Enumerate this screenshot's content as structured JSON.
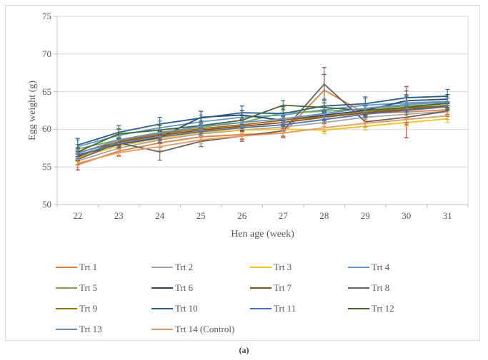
{
  "figure": {
    "caption": "(a)"
  },
  "chart_data": {
    "type": "line",
    "title": "",
    "xlabel": "Hen age (week)",
    "ylabel": "Egg weight (g)",
    "x": [
      22,
      23,
      24,
      25,
      26,
      27,
      28,
      29,
      30,
      31
    ],
    "ylim": [
      50,
      75
    ],
    "yticks": [
      50,
      55,
      60,
      65,
      70,
      75
    ],
    "grid": true,
    "error_bars": true,
    "legend_position": "bottom",
    "axis_color": "#bfbfbf",
    "gridline_color": "#d9d9d9",
    "series": [
      {
        "name": "Trt 1",
        "color": "#ED7D31",
        "err": 0.6,
        "err_color": "#E02020",
        "err_overrides": {
          "0": 0.7,
          "6": 2.1,
          "8": 3.4
        },
        "values": [
          55.3,
          57.1,
          58.2,
          59.0,
          59.3,
          59.5,
          65.2,
          62.1,
          62.3,
          62.6
        ]
      },
      {
        "name": "Trt 2",
        "color": "#A5A5A5",
        "err": 0.5,
        "values": [
          55.8,
          57.5,
          58.6,
          59.4,
          59.9,
          60.3,
          60.9,
          61.6,
          62.0,
          62.4
        ]
      },
      {
        "name": "Trt 3",
        "color": "#FFC000",
        "err": 0.5,
        "values": [
          56.2,
          57.8,
          58.8,
          59.6,
          59.9,
          60.0,
          59.9,
          60.4,
          60.9,
          61.4
        ]
      },
      {
        "name": "Trt 4",
        "color": "#5B9BD5",
        "err": 0.9,
        "values": [
          57.7,
          59.2,
          60.2,
          61.0,
          61.6,
          61.9,
          62.6,
          63.2,
          63.5,
          63.7
        ]
      },
      {
        "name": "Trt 5",
        "color": "#70AD47",
        "err": 0.6,
        "err_overrides": {
          "9": 0.9
        },
        "values": [
          57.4,
          58.6,
          59.6,
          60.3,
          60.9,
          62.2,
          62.4,
          62.7,
          63.1,
          63.4
        ]
      },
      {
        "name": "Trt 6",
        "color": "#264478",
        "err": 0.6,
        "err_overrides": {
          "3": 0.8
        },
        "values": [
          56.5,
          58.0,
          58.9,
          61.6,
          61.9,
          61.2,
          61.9,
          62.5,
          63.8,
          64.0
        ]
      },
      {
        "name": "Trt 7",
        "color": "#9E480E",
        "err": 0.5,
        "err_overrides": {
          "8": 2.0
        },
        "values": [
          56.9,
          58.3,
          59.2,
          59.9,
          60.4,
          60.9,
          61.6,
          62.2,
          62.6,
          63.1
        ]
      },
      {
        "name": "Trt 8",
        "color": "#636363",
        "err": 0.7,
        "err_overrides": {
          "2": 1.1,
          "6": 2.2
        },
        "values": [
          56.0,
          58.2,
          57.0,
          58.4,
          59.1,
          59.8,
          66.0,
          61.0,
          61.6,
          62.4
        ]
      },
      {
        "name": "Trt 9",
        "color": "#997300",
        "err": 0.5,
        "values": [
          56.3,
          58.4,
          59.4,
          60.1,
          60.6,
          61.2,
          61.7,
          62.3,
          62.8,
          63.2
        ]
      },
      {
        "name": "Trt 10",
        "color": "#255E91",
        "err": 0.9,
        "values": [
          57.9,
          59.6,
          60.7,
          61.5,
          62.2,
          62.1,
          63.1,
          63.4,
          64.2,
          64.4
        ]
      },
      {
        "name": "Trt 11",
        "color": "#4472C4",
        "err": 0.5,
        "values": [
          56.6,
          58.1,
          59.0,
          59.7,
          60.2,
          60.6,
          61.3,
          62.0,
          62.5,
          63.0
        ]
      },
      {
        "name": "Trt 12",
        "color": "#43682B",
        "err": 0.6,
        "values": [
          57.0,
          59.4,
          59.9,
          60.5,
          61.2,
          63.2,
          62.9,
          62.5,
          62.9,
          63.5
        ]
      },
      {
        "name": "Trt 13",
        "color": "#698ED0",
        "err": 0.5,
        "values": [
          56.8,
          58.6,
          59.5,
          60.4,
          60.9,
          61.4,
          62.1,
          62.8,
          63.3,
          63.6
        ]
      },
      {
        "name": "Trt 14 (Control)",
        "color": "#F1975A",
        "err": 0.5,
        "values": [
          55.5,
          56.9,
          57.7,
          58.6,
          59.1,
          59.5,
          60.2,
          60.8,
          61.3,
          61.8
        ]
      }
    ]
  }
}
